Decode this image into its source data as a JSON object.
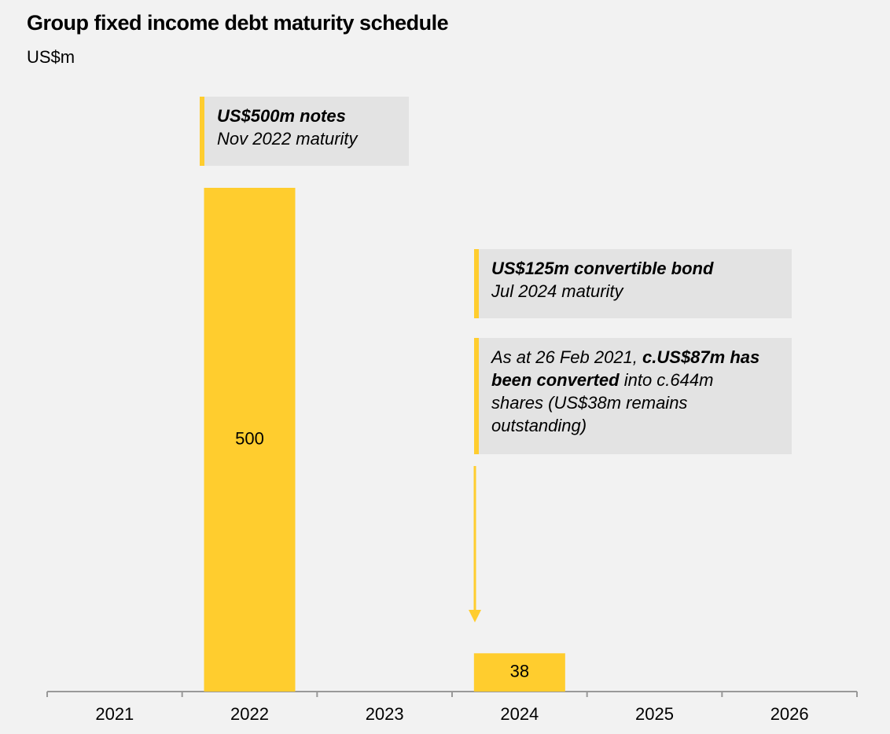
{
  "chart_data": {
    "type": "bar",
    "title": "Group fixed income debt maturity schedule",
    "subtitle": "US$m",
    "categories": [
      "2021",
      "2022",
      "2023",
      "2024",
      "2025",
      "2026"
    ],
    "values": [
      null,
      500,
      null,
      38,
      null,
      null
    ],
    "color": "#ffcd2e",
    "annotations": [
      {
        "title": "US$500m notes",
        "text": "Nov 2022 maturity"
      },
      {
        "title": "US$125m convertible bond",
        "text": "Jul 2024 maturity"
      },
      {
        "parts": [
          "As at 26 Feb 2021, ",
          "c.US$87m has been converted",
          " into c.644m shares (US$38m remains outstanding)"
        ]
      }
    ]
  }
}
